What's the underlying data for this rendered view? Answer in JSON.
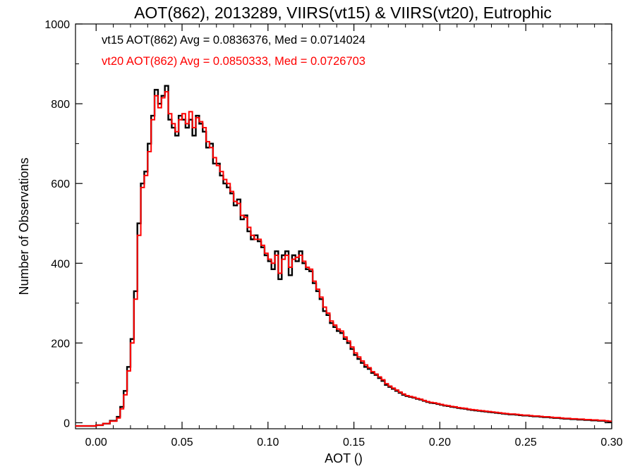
{
  "chart_data": {
    "type": "line",
    "title": "AOT(862), 2013289, VIIRS(vt15) & VIIRS(vt20), Eutrophic",
    "xlabel": "AOT ()",
    "ylabel": "Number of Observations",
    "xlim": [
      -0.012,
      0.3
    ],
    "ylim": [
      -15,
      1000
    ],
    "xticks": [
      0.0,
      0.05,
      0.1,
      0.15,
      0.2,
      0.25,
      0.3
    ],
    "xtick_labels": [
      "0.00",
      "0.05",
      "0.10",
      "0.15",
      "0.20",
      "0.25",
      "0.30"
    ],
    "yticks": [
      0,
      200,
      400,
      600,
      800,
      1000
    ],
    "ytick_labels": [
      "0",
      "200",
      "400",
      "600",
      "800",
      "1000"
    ],
    "grid": false,
    "step": "histogram",
    "annotations": [
      {
        "text": "vt15 AOT(862) Avg = 0.0836376, Med = 0.0714024",
        "color": "#000000"
      },
      {
        "text": "vt20 AOT(862) Avg = 0.0850333, Med = 0.0726703",
        "color": "#ff0000"
      }
    ],
    "series": [
      {
        "color": "#000000",
        "x": [
          -0.012,
          0.0,
          0.004,
          0.008,
          0.012,
          0.014,
          0.016,
          0.018,
          0.02,
          0.022,
          0.024,
          0.026,
          0.028,
          0.03,
          0.032,
          0.034,
          0.036,
          0.038,
          0.04,
          0.042,
          0.044,
          0.046,
          0.048,
          0.05,
          0.052,
          0.054,
          0.056,
          0.058,
          0.06,
          0.062,
          0.064,
          0.066,
          0.068,
          0.07,
          0.072,
          0.074,
          0.076,
          0.078,
          0.08,
          0.082,
          0.084,
          0.086,
          0.088,
          0.09,
          0.092,
          0.094,
          0.096,
          0.098,
          0.1,
          0.102,
          0.104,
          0.106,
          0.108,
          0.11,
          0.112,
          0.114,
          0.116,
          0.118,
          0.12,
          0.122,
          0.124,
          0.126,
          0.128,
          0.13,
          0.132,
          0.134,
          0.136,
          0.138,
          0.14,
          0.142,
          0.144,
          0.146,
          0.148,
          0.15,
          0.152,
          0.154,
          0.156,
          0.158,
          0.16,
          0.162,
          0.164,
          0.166,
          0.168,
          0.17,
          0.172,
          0.174,
          0.176,
          0.178,
          0.18,
          0.182,
          0.184,
          0.186,
          0.188,
          0.19,
          0.192,
          0.194,
          0.196,
          0.198,
          0.2,
          0.202,
          0.204,
          0.206,
          0.208,
          0.21,
          0.212,
          0.214,
          0.216,
          0.218,
          0.22,
          0.222,
          0.224,
          0.226,
          0.228,
          0.23,
          0.232,
          0.234,
          0.236,
          0.238,
          0.24,
          0.242,
          0.244,
          0.246,
          0.248,
          0.25,
          0.252,
          0.254,
          0.256,
          0.258,
          0.26,
          0.262,
          0.264,
          0.266,
          0.268,
          0.27,
          0.272,
          0.274,
          0.276,
          0.278,
          0.28,
          0.282,
          0.284,
          0.286,
          0.288,
          0.29,
          0.292,
          0.294,
          0.296,
          0.298,
          0.3
        ],
        "y": [
          -8,
          -6,
          -2,
          5,
          15,
          40,
          80,
          140,
          210,
          330,
          500,
          600,
          630,
          700,
          770,
          835,
          800,
          820,
          845,
          760,
          740,
          720,
          770,
          760,
          740,
          760,
          720,
          770,
          750,
          730,
          690,
          700,
          650,
          650,
          620,
          600,
          590,
          575,
          545,
          560,
          510,
          520,
          480,
          460,
          470,
          455,
          440,
          420,
          405,
          385,
          430,
          360,
          420,
          430,
          370,
          420,
          405,
          430,
          400,
          385,
          380,
          350,
          330,
          310,
          280,
          270,
          250,
          240,
          230,
          225,
          210,
          200,
          185,
          170,
          160,
          150,
          140,
          135,
          125,
          120,
          112,
          105,
          95,
          90,
          85,
          80,
          75,
          70,
          67,
          65,
          63,
          60,
          58,
          55,
          52,
          50,
          49,
          47,
          45,
          43,
          42,
          40,
          39,
          37,
          36,
          35,
          33,
          32,
          31,
          30,
          29,
          28,
          27,
          26,
          25,
          24,
          23,
          22,
          21,
          21,
          20,
          19,
          18,
          18,
          17,
          16,
          16,
          15,
          14,
          14,
          13,
          12,
          12,
          11,
          10,
          10,
          9,
          9,
          8,
          8,
          7,
          7,
          6,
          6,
          5,
          5,
          4,
          3,
          3
        ]
      },
      {
        "color": "#ff0000",
        "x": [
          -0.012,
          0.0,
          0.004,
          0.008,
          0.012,
          0.014,
          0.016,
          0.018,
          0.02,
          0.022,
          0.024,
          0.026,
          0.028,
          0.03,
          0.032,
          0.034,
          0.036,
          0.038,
          0.04,
          0.042,
          0.044,
          0.046,
          0.048,
          0.05,
          0.052,
          0.054,
          0.056,
          0.058,
          0.06,
          0.062,
          0.064,
          0.066,
          0.068,
          0.07,
          0.072,
          0.074,
          0.076,
          0.078,
          0.08,
          0.082,
          0.084,
          0.086,
          0.088,
          0.09,
          0.092,
          0.094,
          0.096,
          0.098,
          0.1,
          0.102,
          0.104,
          0.106,
          0.108,
          0.11,
          0.112,
          0.114,
          0.116,
          0.118,
          0.12,
          0.122,
          0.124,
          0.126,
          0.128,
          0.13,
          0.132,
          0.134,
          0.136,
          0.138,
          0.14,
          0.142,
          0.144,
          0.146,
          0.148,
          0.15,
          0.152,
          0.154,
          0.156,
          0.158,
          0.16,
          0.162,
          0.164,
          0.166,
          0.168,
          0.17,
          0.172,
          0.174,
          0.176,
          0.178,
          0.18,
          0.182,
          0.184,
          0.186,
          0.188,
          0.19,
          0.192,
          0.194,
          0.196,
          0.198,
          0.2,
          0.202,
          0.204,
          0.206,
          0.208,
          0.21,
          0.212,
          0.214,
          0.216,
          0.218,
          0.22,
          0.222,
          0.224,
          0.226,
          0.228,
          0.23,
          0.232,
          0.234,
          0.236,
          0.238,
          0.24,
          0.242,
          0.244,
          0.246,
          0.248,
          0.25,
          0.252,
          0.254,
          0.256,
          0.258,
          0.26,
          0.262,
          0.264,
          0.266,
          0.268,
          0.27,
          0.272,
          0.274,
          0.276,
          0.278,
          0.28,
          0.282,
          0.284,
          0.286,
          0.288,
          0.29,
          0.292,
          0.294,
          0.296,
          0.298,
          0.3
        ],
        "y": [
          -8,
          -6,
          -2,
          4,
          12,
          35,
          70,
          130,
          200,
          310,
          470,
          590,
          620,
          680,
          760,
          820,
          790,
          815,
          830,
          775,
          750,
          730,
          760,
          775,
          750,
          780,
          740,
          765,
          755,
          740,
          705,
          690,
          665,
          645,
          630,
          610,
          600,
          580,
          555,
          550,
          520,
          515,
          490,
          470,
          460,
          460,
          445,
          425,
          410,
          400,
          420,
          375,
          410,
          420,
          390,
          410,
          415,
          420,
          405,
          390,
          385,
          355,
          335,
          315,
          290,
          275,
          255,
          245,
          235,
          230,
          215,
          205,
          190,
          175,
          165,
          155,
          145,
          138,
          128,
          122,
          115,
          108,
          98,
          92,
          87,
          82,
          77,
          72,
          68,
          66,
          64,
          61,
          59,
          56,
          53,
          51,
          50,
          48,
          46,
          44,
          43,
          41,
          40,
          38,
          37,
          36,
          34,
          33,
          32,
          31,
          30,
          29,
          28,
          27,
          26,
          25,
          24,
          23,
          22,
          22,
          21,
          20,
          19,
          19,
          18,
          17,
          17,
          16,
          15,
          15,
          14,
          13,
          13,
          12,
          11,
          11,
          10,
          10,
          9,
          9,
          8,
          8,
          7,
          7,
          6,
          6,
          5,
          4,
          4
        ]
      }
    ]
  }
}
